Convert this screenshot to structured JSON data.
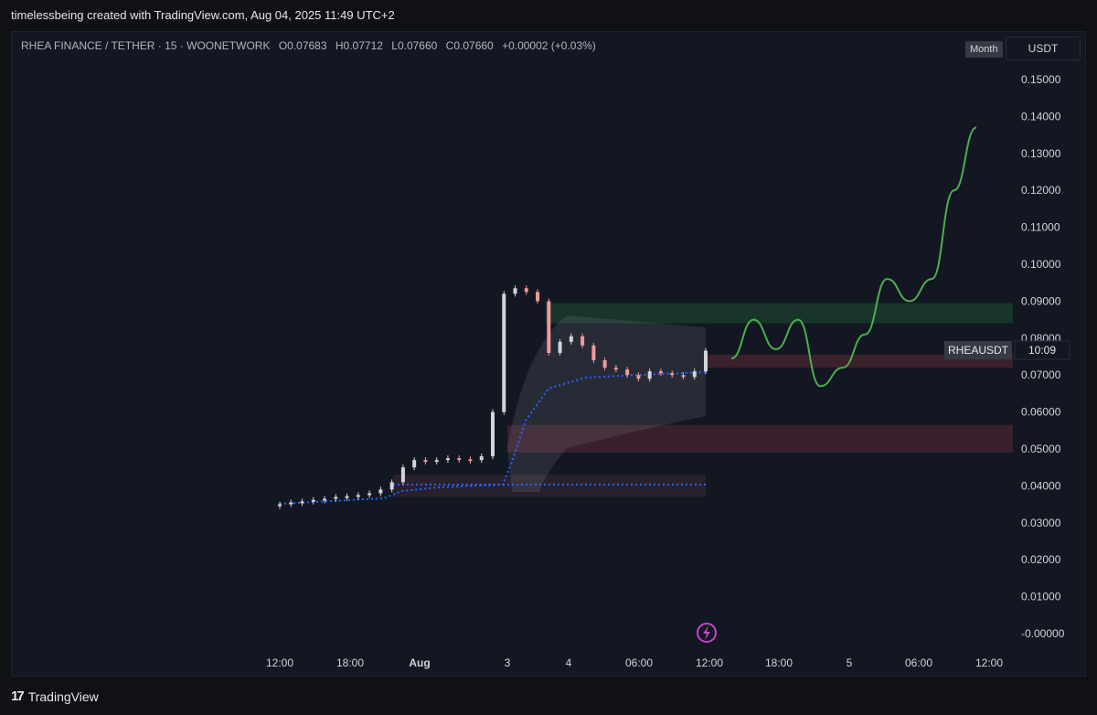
{
  "header": {
    "credit": "timelessbeing created with TradingView.com, Aug 04, 2025 11:49 UTC+2"
  },
  "legend": {
    "symbol": "RHEA FINANCE / TETHER · 15 · WOONETWORK",
    "open": "O0.07683",
    "high": "H0.07712",
    "low": "L0.07660",
    "close": "C0.07660",
    "change": "+0.00002 (+0.03%)"
  },
  "buttons": {
    "month": "Month",
    "currency": "USDT"
  },
  "price_tag": {
    "symbol": "RHEAUSDT",
    "countdown": "10:09"
  },
  "footer": {
    "brand": "TradingView",
    "logo_mark": "17"
  },
  "colors": {
    "background": "#131722",
    "candle_up": "#d1d4dc",
    "candle_down": "#ef9a9a",
    "vwap": "#2962ff",
    "projection": "#4caf50",
    "resistance_zone": "#1b3a2a",
    "support_zone": "#4a2530"
  },
  "chart_data": {
    "type": "line",
    "title": "RHEA FINANCE / TETHER · 15 · WOONETWORK",
    "y_ticks": [
      "0.15000",
      "0.14000",
      "0.13000",
      "0.12000",
      "0.11000",
      "0.10000",
      "0.09000",
      "0.08000",
      "0.07000",
      "0.06000",
      "0.05000",
      "0.04000",
      "0.03000",
      "0.02000",
      "0.01000",
      "-0.00000"
    ],
    "x_ticks": [
      "12:00",
      "18:00",
      "Aug",
      "3",
      "4",
      "06:00",
      "12:00",
      "18:00",
      "5",
      "06:00",
      "12:00"
    ],
    "ylim": [
      0,
      0.15
    ],
    "series": [
      {
        "values": [
          0.035,
          0.0355,
          0.0358,
          0.0362,
          0.0365,
          0.037,
          0.0372,
          0.0375,
          0.038,
          0.039,
          0.041,
          0.045,
          0.047,
          0.0465,
          0.047,
          0.0475,
          0.0472,
          0.047,
          0.048,
          0.06,
          0.092,
          0.0935,
          0.0925,
          0.09,
          0.076,
          0.079,
          0.0805,
          0.078,
          0.074,
          0.072,
          0.0715,
          0.07,
          0.069,
          0.071,
          0.0705,
          0.07,
          0.0695,
          0.071,
          0.0766
        ]
      },
      {
        "values": [
          0.0745,
          0.085,
          0.077,
          0.085,
          0.067,
          0.072,
          0.081,
          0.096,
          0.09,
          0.096,
          0.12,
          0.137
        ]
      }
    ],
    "current_price": "0.07660",
    "zones": [
      {
        "low": 0.084,
        "high": 0.0895
      },
      {
        "low": 0.072,
        "high": 0.0755
      },
      {
        "low": 0.049,
        "high": 0.0565
      },
      {
        "low": 0.037,
        "high": 0.043
      }
    ],
    "grid": false
  }
}
